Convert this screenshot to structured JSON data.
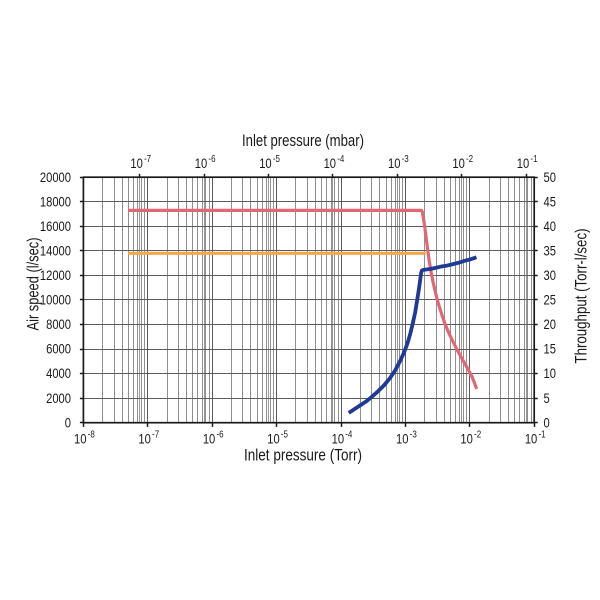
{
  "page": {
    "background": "#ffffff"
  },
  "chart_data": {
    "type": "line",
    "grid": {
      "major_color": "#5c5c5c",
      "minor_color": "#8f8f8f",
      "mbar_decade_color": "#9a9a9a",
      "frame_color": "#1a1a1a"
    },
    "axes": {
      "bottom": {
        "title": "Inlet pressure (Torr)",
        "scale": "log",
        "min": 1e-08,
        "max": 0.1,
        "ticks": [
          {
            "base": "10",
            "exp": "-8"
          },
          {
            "base": "10",
            "exp": "-7"
          },
          {
            "base": "10",
            "exp": "-6"
          },
          {
            "base": "10",
            "exp": "-5"
          },
          {
            "base": "10",
            "exp": "-4"
          },
          {
            "base": "10",
            "exp": "-3"
          },
          {
            "base": "10",
            "exp": "-2"
          },
          {
            "base": "10",
            "exp": "-1"
          }
        ]
      },
      "top": {
        "title": "Inlet pressure (mbar)",
        "scale": "log",
        "min": 1e-07,
        "max": 0.1,
        "torr_per_mbar": 0.75006,
        "ticks": [
          {
            "base": "10",
            "exp": "-7"
          },
          {
            "base": "10",
            "exp": "-6"
          },
          {
            "base": "10",
            "exp": "-5"
          },
          {
            "base": "10",
            "exp": "-4"
          },
          {
            "base": "10",
            "exp": "-3"
          },
          {
            "base": "10",
            "exp": "-2"
          },
          {
            "base": "10",
            "exp": "-1"
          }
        ]
      },
      "left": {
        "title": "Air speed (l/sec)",
        "min": 0,
        "max": 20000,
        "step": 2000,
        "tick_labels": [
          "0",
          "2000",
          "4000",
          "6000",
          "8000",
          "10000",
          "12000",
          "14000",
          "16000",
          "18000",
          "20000"
        ]
      },
      "right": {
        "title": "Throughput (Torr-l/sec)",
        "min": 0,
        "max": 50,
        "step": 5,
        "tick_labels": [
          "0",
          "5",
          "10",
          "15",
          "20",
          "25",
          "30",
          "35",
          "40",
          "45",
          "50"
        ]
      }
    },
    "series": [
      {
        "name": "air-speed-upper-curve",
        "axis": "left",
        "color": "#e26774",
        "width": 3.2,
        "points": [
          [
            4.93e-08,
            17300
          ],
          [
            0.00178,
            17300
          ],
          [
            0.00183,
            17170
          ],
          [
            0.00188,
            16840
          ],
          [
            0.00199,
            16020
          ],
          [
            0.0021,
            15050
          ],
          [
            0.00223,
            13990
          ],
          [
            0.00237,
            13010
          ],
          [
            0.00252,
            12200
          ],
          [
            0.00271,
            11380
          ],
          [
            0.00294,
            10570
          ],
          [
            0.00323,
            9750
          ],
          [
            0.0036,
            8940
          ],
          [
            0.00406,
            8140
          ],
          [
            0.00465,
            7390
          ],
          [
            0.00541,
            6660
          ],
          [
            0.00637,
            5920
          ],
          [
            0.00762,
            5190
          ],
          [
            0.00914,
            4460
          ],
          [
            0.0109,
            3720
          ],
          [
            0.0128,
            2750
          ]
        ]
      },
      {
        "name": "air-speed-lower-curve",
        "axis": "left",
        "color": "#f4a84e",
        "width": 3.2,
        "points": [
          [
            4.93e-08,
            13800
          ],
          [
            0.00207,
            13800
          ]
        ]
      },
      {
        "name": "throughput-curve",
        "axis": "right",
        "color": "#1e3a96",
        "width": 3.8,
        "points": [
          [
            0.000132,
            2.0
          ],
          [
            0.000159,
            2.7
          ],
          [
            0.000197,
            3.5
          ],
          [
            0.000244,
            4.3
          ],
          [
            0.000303,
            5.3
          ],
          [
            0.000375,
            6.4
          ],
          [
            0.000465,
            7.6
          ],
          [
            0.000577,
            9.1
          ],
          [
            0.000689,
            10.6
          ],
          [
            0.000824,
            12.5
          ],
          [
            0.000951,
            14.3
          ],
          [
            0.00108,
            16.2
          ],
          [
            0.0012,
            18.3
          ],
          [
            0.00131,
            20.4
          ],
          [
            0.00142,
            22.5
          ],
          [
            0.00152,
            24.9
          ],
          [
            0.00162,
            27.2
          ],
          [
            0.0017,
            29.2
          ],
          [
            0.00175,
            30.4
          ],
          [
            0.0018,
            31.0
          ],
          [
            0.00188,
            31.1
          ],
          [
            0.00209,
            31.2
          ],
          [
            0.00241,
            31.3
          ],
          [
            0.00288,
            31.5
          ],
          [
            0.00357,
            31.8
          ],
          [
            0.00443,
            32.0
          ],
          [
            0.00548,
            32.3
          ],
          [
            0.0068,
            32.6
          ],
          [
            0.00842,
            33.0
          ],
          [
            0.0104,
            33.3
          ],
          [
            0.0127,
            33.7
          ]
        ]
      }
    ]
  }
}
